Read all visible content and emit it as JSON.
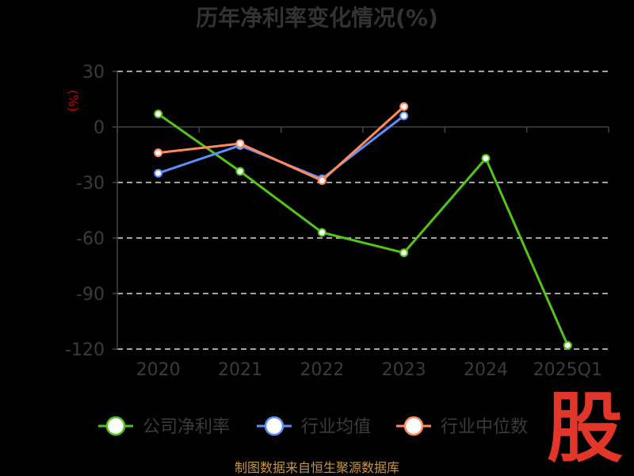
{
  "chart_data": {
    "type": "line",
    "title": "历年净利率变化情况(%)",
    "ylabel": "(%)",
    "categories": [
      "2020",
      "2021",
      "2022",
      "2023",
      "2024",
      "2025Q1"
    ],
    "ylim": [
      -120,
      30
    ],
    "yticks": [
      30,
      0,
      -30,
      -60,
      -90,
      -120
    ],
    "grid": "horizontal dashed",
    "legend_position": "bottom",
    "series": [
      {
        "name": "公司净利率",
        "color": "#52c41a",
        "values": [
          7,
          -24,
          -57,
          -68,
          -17,
          -118
        ]
      },
      {
        "name": "行业均值",
        "color": "#5b8ff9",
        "values": [
          -25,
          -10,
          -28,
          6,
          null,
          null
        ]
      },
      {
        "name": "行业中位数",
        "color": "#ff8a5c",
        "values": [
          -14,
          -9,
          -29,
          11,
          null,
          null
        ]
      }
    ]
  },
  "footer": {
    "source": "制图数据来自恒生聚源数据库",
    "logo": "股"
  }
}
